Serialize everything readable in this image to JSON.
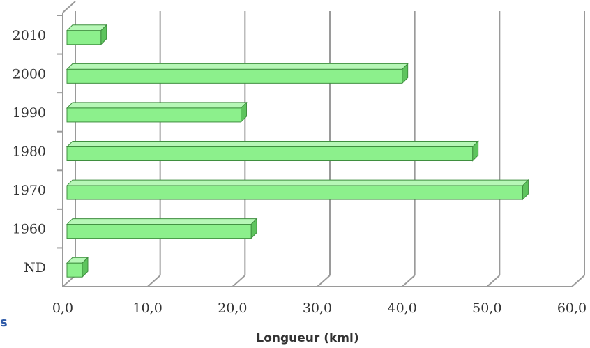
{
  "chart_data": {
    "type": "bar",
    "orientation": "horizontal",
    "categories": [
      "2010",
      "2000",
      "1990",
      "1980",
      "1970",
      "1960",
      "ND"
    ],
    "values": [
      4.5,
      40.0,
      21.0,
      48.3,
      54.2,
      22.2,
      2.3
    ],
    "title": "",
    "xlabel": "Longueur (kml)",
    "ylabel": "",
    "xlim": [
      0,
      60
    ],
    "x_ticks": [
      "0,0",
      "10,0",
      "20,0",
      "30,0",
      "40,0",
      "50,0",
      "60,0"
    ],
    "grid": "vertical",
    "legend": "none",
    "style": "3d",
    "colors": {
      "bar_front": "#8cf08c",
      "bar_top": "#b6f7b6",
      "bar_side": "#5ec45e",
      "bar_edge": "#3f8f3f",
      "gridline": "#9a9a9a",
      "axis": "#9a9a9a"
    }
  },
  "fragment_text": "s"
}
